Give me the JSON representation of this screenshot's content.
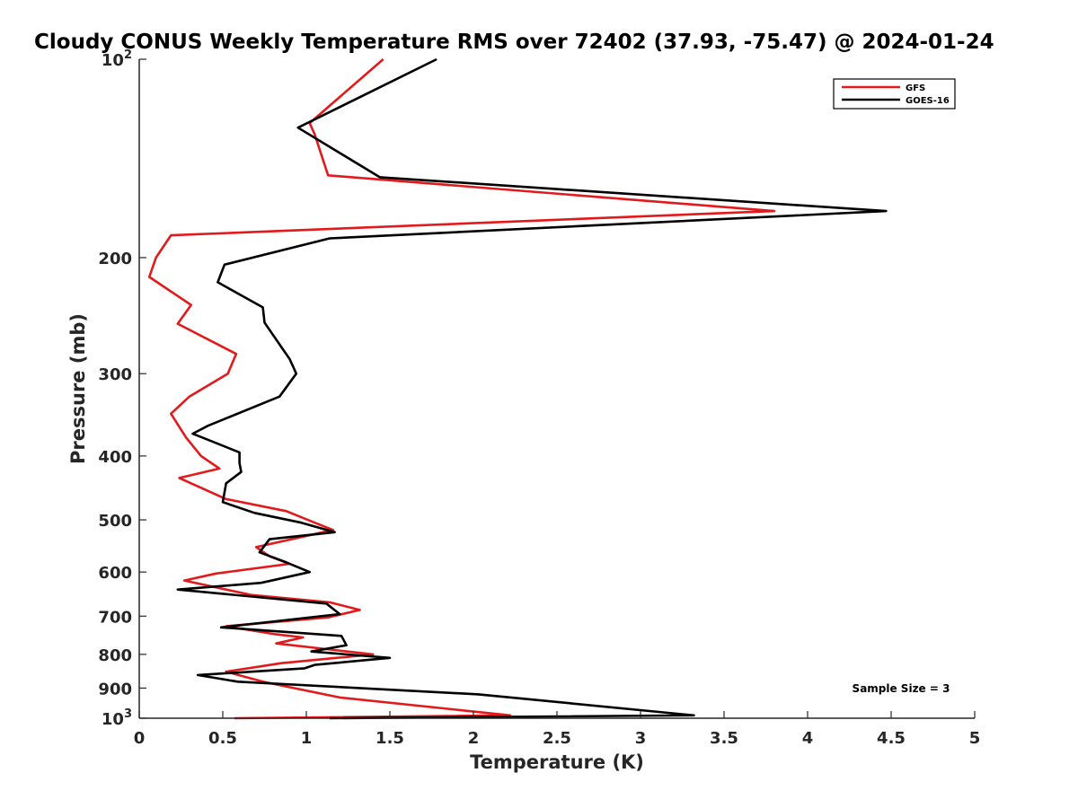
{
  "chart_data": {
    "type": "line",
    "title": "Cloudy CONUS Weekly Temperature RMS over 72402 (37.93, -75.47) @ 2024-01-24",
    "xlabel": "Temperature (K)",
    "ylabel": "Pressure (mb)",
    "xlim": [
      0,
      5
    ],
    "ylim": [
      1000,
      100
    ],
    "y_scale": "log",
    "y_reversed": true,
    "x_ticks": [
      "0",
      "0.5",
      "1",
      "1.5",
      "2",
      "2.5",
      "3",
      "3.5",
      "4",
      "4.5",
      "5"
    ],
    "y_ticks": [
      {
        "value": 100,
        "base": "10",
        "exp": "2"
      },
      {
        "value": 200,
        "label": "200"
      },
      {
        "value": 300,
        "label": "300"
      },
      {
        "value": 400,
        "label": "400"
      },
      {
        "value": 500,
        "label": "500"
      },
      {
        "value": 600,
        "label": "600"
      },
      {
        "value": 700,
        "label": "700"
      },
      {
        "value": 800,
        "label": "800"
      },
      {
        "value": 900,
        "label": "900"
      },
      {
        "value": 1000,
        "base": "10",
        "exp": "3"
      }
    ],
    "legend_position": "top-right",
    "annotation": "Sample Size = 3",
    "series": [
      {
        "name": "GFS",
        "color": "#e31a1c",
        "points": [
          [
            1.46,
            100
          ],
          [
            1.02,
            125
          ],
          [
            1.05,
            130
          ],
          [
            1.13,
            150
          ],
          [
            3.8,
            170
          ],
          [
            0.19,
            185
          ],
          [
            0.1,
            200
          ],
          [
            0.06,
            214
          ],
          [
            0.31,
            236
          ],
          [
            0.23,
            252
          ],
          [
            0.58,
            280
          ],
          [
            0.53,
            300
          ],
          [
            0.3,
            325
          ],
          [
            0.19,
            345
          ],
          [
            0.28,
            375
          ],
          [
            0.37,
            400
          ],
          [
            0.48,
            418
          ],
          [
            0.24,
            432
          ],
          [
            0.52,
            465
          ],
          [
            0.88,
            485
          ],
          [
            1.05,
            505
          ],
          [
            1.16,
            518
          ],
          [
            0.7,
            550
          ],
          [
            0.78,
            568
          ],
          [
            0.9,
            583
          ],
          [
            0.46,
            603
          ],
          [
            0.27,
            618
          ],
          [
            0.67,
            650
          ],
          [
            1.14,
            667
          ],
          [
            1.32,
            685
          ],
          [
            1.13,
            703
          ],
          [
            0.52,
            725
          ],
          [
            0.82,
            746
          ],
          [
            0.98,
            754
          ],
          [
            0.82,
            770
          ],
          [
            1.4,
            800
          ],
          [
            0.85,
            825
          ],
          [
            0.52,
            850
          ],
          [
            0.74,
            880
          ],
          [
            1.2,
            930
          ],
          [
            2.22,
            990
          ],
          [
            0.57,
            1000
          ]
        ]
      },
      {
        "name": "GOES-16",
        "color": "#000000",
        "points": [
          [
            1.78,
            100
          ],
          [
            0.95,
            127
          ],
          [
            1.44,
            151
          ],
          [
            4.47,
            170
          ],
          [
            1.14,
            187
          ],
          [
            0.51,
            205
          ],
          [
            0.47,
            218
          ],
          [
            0.74,
            238
          ],
          [
            0.75,
            251
          ],
          [
            0.9,
            285
          ],
          [
            0.94,
            300
          ],
          [
            0.84,
            325
          ],
          [
            0.41,
            360
          ],
          [
            0.32,
            370
          ],
          [
            0.6,
            395
          ],
          [
            0.6,
            410
          ],
          [
            0.61,
            423
          ],
          [
            0.52,
            440
          ],
          [
            0.5,
            470
          ],
          [
            0.69,
            488
          ],
          [
            0.97,
            505
          ],
          [
            1.17,
            522
          ],
          [
            0.78,
            535
          ],
          [
            0.72,
            560
          ],
          [
            0.88,
            580
          ],
          [
            1.02,
            600
          ],
          [
            0.73,
            623
          ],
          [
            0.23,
            638
          ],
          [
            1.12,
            670
          ],
          [
            1.2,
            695
          ],
          [
            0.49,
            728
          ],
          [
            1.21,
            750
          ],
          [
            1.24,
            775
          ],
          [
            1.03,
            792
          ],
          [
            1.5,
            810
          ],
          [
            1.05,
            830
          ],
          [
            0.99,
            840
          ],
          [
            0.35,
            860
          ],
          [
            0.59,
            880
          ],
          [
            2.03,
            920
          ],
          [
            3.32,
            990
          ],
          [
            1.14,
            1000
          ]
        ]
      }
    ]
  }
}
